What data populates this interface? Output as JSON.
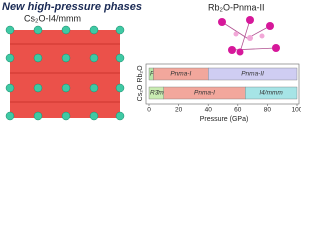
{
  "texts": {
    "title": "New high-pressure phases",
    "left_label": "Cs₂O-I4/mmm",
    "right_label": "Rb₂O-Pnma-II"
  },
  "chart_data": {
    "type": "phase-bar",
    "categories": [
      "Rb₂O",
      "Cs₂O"
    ],
    "rows": [
      {
        "segments": [
          {
            "name": "Fm3̄m",
            "range": [
              0,
              3
            ],
            "color": "#b8e6a8"
          },
          {
            "name": "Pnma-I",
            "range": [
              3,
              40
            ],
            "color": "#f2a79c"
          },
          {
            "name": "Pnma-II",
            "range": [
              40,
              100
            ],
            "color": "#cfcdf2"
          }
        ]
      },
      {
        "segments": [
          {
            "name": "R3̄m",
            "range": [
              0,
              10
            ],
            "color": "#c9ecb2"
          },
          {
            "name": "Pnma-I",
            "range": [
              10,
              65
            ],
            "color": "#f2a79c"
          },
          {
            "name": "I4/mmm",
            "range": [
              65,
              100
            ],
            "color": "#a6e4e6"
          }
        ]
      }
    ],
    "xlim": [
      0,
      100
    ],
    "xticks": [
      0,
      20,
      40,
      60,
      80,
      100
    ],
    "xlabel": "Pressure (GPa)"
  }
}
